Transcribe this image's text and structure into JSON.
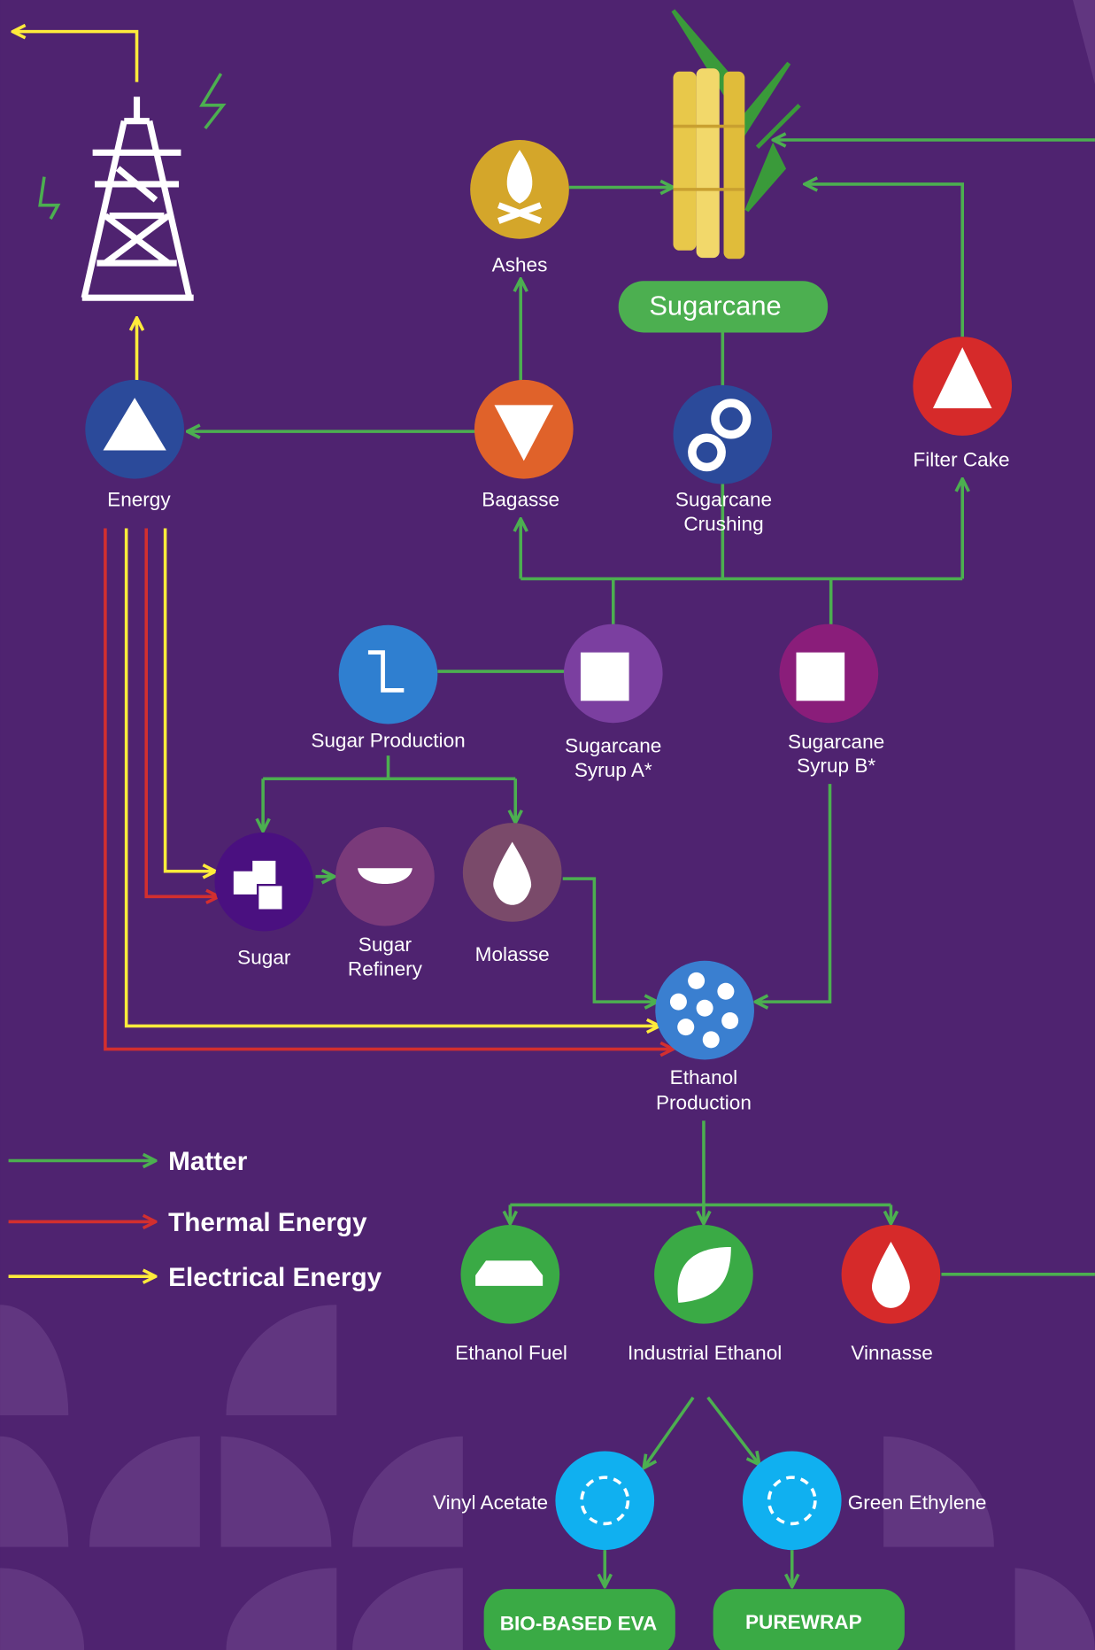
{
  "sugarcane": "Sugarcane",
  "nodes": {
    "ashes": [
      "Ashes"
    ],
    "bagasse": [
      "Bagasse"
    ],
    "crushing": [
      "Sugarcane",
      "Crushing"
    ],
    "filter_cake": [
      "Filter Cake"
    ],
    "energy": [
      "Energy"
    ],
    "sugar_production": [
      "Sugar Production"
    ],
    "syrup_a": [
      "Sugarcane",
      "Syrup A*"
    ],
    "syrup_b": [
      "Sugarcane",
      "Syrup B*"
    ],
    "sugar": [
      "Sugar"
    ],
    "sugar_refinery": [
      "Sugar",
      "Refinery"
    ],
    "molasse": [
      "Molasse"
    ],
    "ethanol_production": [
      "Ethanol",
      "Production"
    ],
    "ethanol_fuel": [
      "Ethanol Fuel"
    ],
    "industrial_ethanol": [
      "Industrial Ethanol"
    ],
    "vinnasse": [
      "Vinnasse"
    ],
    "vinyl_acetate": [
      "Vinyl Acetate"
    ],
    "green_ethylene": [
      "Green Ethylene"
    ]
  },
  "legend": [
    "Matter",
    "Thermal Energy",
    "Electrical Energy"
  ],
  "buttons": [
    "BIO-BASED EVA",
    "PUREWRAP"
  ]
}
